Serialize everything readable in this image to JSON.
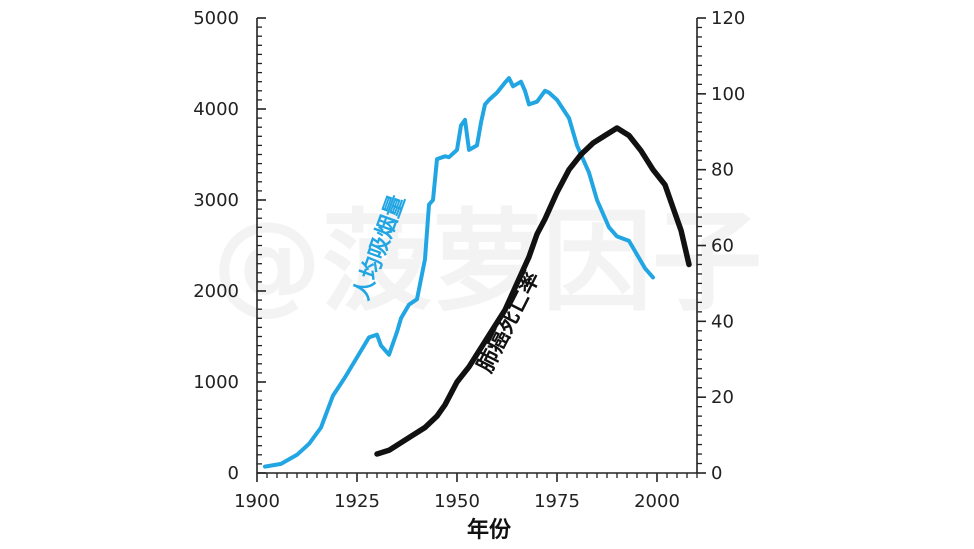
{
  "chart_data": {
    "type": "line",
    "xlabel": "年份",
    "x_ticks": [
      1900,
      1925,
      1950,
      1975,
      2000
    ],
    "xlim": [
      1900,
      2010
    ],
    "y_left": {
      "ticks": [
        0,
        1000,
        2000,
        3000,
        4000,
        5000
      ],
      "ylim": [
        0,
        5000
      ]
    },
    "y_right": {
      "ticks": [
        0,
        20,
        40,
        60,
        80,
        100,
        120
      ],
      "ylim": [
        0,
        120
      ]
    },
    "colors": {
      "cigarettes": "#21a6e3",
      "lung_cancer": "#111111"
    },
    "series": [
      {
        "name": "人均吸烟量",
        "axis": "left",
        "x": [
          1902,
          1906,
          1910,
          1913,
          1916,
          1919,
          1922,
          1925,
          1928,
          1930,
          1931,
          1933,
          1935,
          1936,
          1938,
          1940,
          1942,
          1943,
          1944,
          1945,
          1947,
          1948,
          1950,
          1951,
          1952,
          1953,
          1955,
          1956,
          1957,
          1958,
          1960,
          1962,
          1963,
          1964,
          1966,
          1967,
          1968,
          1970,
          1972,
          1973,
          1975,
          1978,
          1980,
          1983,
          1985,
          1988,
          1990,
          1993,
          1995,
          1997,
          1999
        ],
        "y": [
          70,
          100,
          200,
          320,
          500,
          850,
          1050,
          1270,
          1490,
          1520,
          1400,
          1300,
          1550,
          1700,
          1850,
          1910,
          2350,
          2950,
          3000,
          3450,
          3480,
          3470,
          3550,
          3820,
          3880,
          3550,
          3600,
          3850,
          4050,
          4100,
          4180,
          4290,
          4340,
          4250,
          4300,
          4200,
          4050,
          4080,
          4200,
          4180,
          4100,
          3900,
          3600,
          3300,
          3000,
          2700,
          2600,
          2550,
          2400,
          2250,
          2150
        ]
      },
      {
        "name": "肺癌死亡率",
        "axis": "right",
        "x": [
          1930,
          1933,
          1936,
          1939,
          1942,
          1945,
          1947,
          1948,
          1950,
          1953,
          1956,
          1959,
          1962,
          1965,
          1968,
          1970,
          1972,
          1975,
          1978,
          1981,
          1984,
          1987,
          1990,
          1993,
          1996,
          1999,
          2002,
          2004,
          2006,
          2008
        ],
        "y": [
          5,
          6,
          8,
          10,
          12,
          15,
          18,
          20,
          24,
          28,
          33,
          38,
          43,
          50,
          57,
          63,
          67,
          74,
          80,
          84,
          87,
          89,
          91,
          89,
          85,
          80,
          76,
          70,
          64,
          55
        ]
      }
    ]
  },
  "watermark": "@菠萝因子"
}
